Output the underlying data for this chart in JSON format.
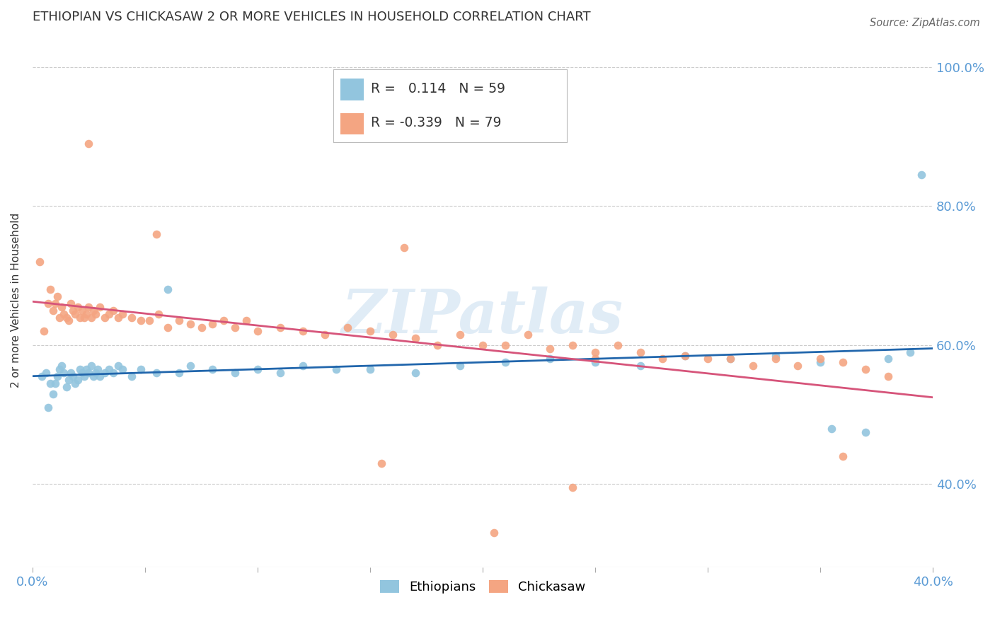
{
  "title": "ETHIOPIAN VS CHICKASAW 2 OR MORE VEHICLES IN HOUSEHOLD CORRELATION CHART",
  "source": "Source: ZipAtlas.com",
  "ylabel": "2 or more Vehicles in Household",
  "watermark": "ZIPatlas",
  "xlim": [
    0.0,
    0.4
  ],
  "ylim": [
    0.28,
    1.05
  ],
  "xticks": [
    0.0,
    0.05,
    0.1,
    0.15,
    0.2,
    0.25,
    0.3,
    0.35,
    0.4
  ],
  "xticklabels_show": {
    "0.0": "0.0%",
    "0.4": "40.0%"
  },
  "yticks": [
    0.4,
    0.6,
    0.8,
    1.0
  ],
  "yticklabels": [
    "40.0%",
    "60.0%",
    "80.0%",
    "100.0%"
  ],
  "blue_color": "#92c5de",
  "blue_line_color": "#2166ac",
  "pink_color": "#f4a582",
  "pink_line_color": "#d6547a",
  "legend_R_blue": "0.114",
  "legend_N_blue": "59",
  "legend_R_pink": "-0.339",
  "legend_N_pink": "79",
  "blue_scatter_x": [
    0.004,
    0.006,
    0.007,
    0.008,
    0.009,
    0.01,
    0.011,
    0.012,
    0.013,
    0.014,
    0.015,
    0.016,
    0.017,
    0.018,
    0.019,
    0.02,
    0.021,
    0.022,
    0.023,
    0.024,
    0.025,
    0.026,
    0.027,
    0.028,
    0.029,
    0.03,
    0.032,
    0.034,
    0.036,
    0.038,
    0.04,
    0.044,
    0.048,
    0.055,
    0.06,
    0.065,
    0.07,
    0.08,
    0.09,
    0.1,
    0.11,
    0.12,
    0.135,
    0.15,
    0.17,
    0.19,
    0.21,
    0.23,
    0.25,
    0.27,
    0.29,
    0.31,
    0.33,
    0.35,
    0.355,
    0.37,
    0.38,
    0.39,
    0.395
  ],
  "blue_scatter_y": [
    0.555,
    0.56,
    0.51,
    0.545,
    0.53,
    0.545,
    0.555,
    0.565,
    0.57,
    0.56,
    0.54,
    0.55,
    0.56,
    0.555,
    0.545,
    0.55,
    0.565,
    0.56,
    0.555,
    0.565,
    0.56,
    0.57,
    0.555,
    0.56,
    0.565,
    0.555,
    0.56,
    0.565,
    0.56,
    0.57,
    0.565,
    0.555,
    0.565,
    0.56,
    0.68,
    0.56,
    0.57,
    0.565,
    0.56,
    0.565,
    0.56,
    0.57,
    0.565,
    0.565,
    0.56,
    0.57,
    0.575,
    0.58,
    0.575,
    0.57,
    0.585,
    0.58,
    0.585,
    0.575,
    0.48,
    0.475,
    0.58,
    0.59,
    0.845
  ],
  "pink_scatter_x": [
    0.003,
    0.005,
    0.007,
    0.008,
    0.009,
    0.01,
    0.011,
    0.012,
    0.013,
    0.014,
    0.015,
    0.016,
    0.017,
    0.018,
    0.019,
    0.02,
    0.021,
    0.022,
    0.023,
    0.024,
    0.025,
    0.026,
    0.027,
    0.028,
    0.03,
    0.032,
    0.034,
    0.036,
    0.038,
    0.04,
    0.044,
    0.048,
    0.052,
    0.056,
    0.06,
    0.065,
    0.07,
    0.075,
    0.08,
    0.085,
    0.09,
    0.095,
    0.1,
    0.11,
    0.12,
    0.13,
    0.14,
    0.15,
    0.16,
    0.17,
    0.18,
    0.19,
    0.2,
    0.21,
    0.22,
    0.23,
    0.24,
    0.25,
    0.26,
    0.27,
    0.28,
    0.29,
    0.3,
    0.31,
    0.32,
    0.33,
    0.34,
    0.35,
    0.36,
    0.37,
    0.38,
    0.025,
    0.055,
    0.165,
    0.205,
    0.25,
    0.36,
    0.155,
    0.24
  ],
  "pink_scatter_y": [
    0.72,
    0.62,
    0.66,
    0.68,
    0.65,
    0.66,
    0.67,
    0.64,
    0.655,
    0.645,
    0.64,
    0.635,
    0.66,
    0.65,
    0.645,
    0.655,
    0.64,
    0.65,
    0.64,
    0.645,
    0.655,
    0.64,
    0.65,
    0.645,
    0.655,
    0.64,
    0.645,
    0.65,
    0.64,
    0.645,
    0.64,
    0.635,
    0.635,
    0.645,
    0.625,
    0.635,
    0.63,
    0.625,
    0.63,
    0.635,
    0.625,
    0.635,
    0.62,
    0.625,
    0.62,
    0.615,
    0.625,
    0.62,
    0.615,
    0.61,
    0.6,
    0.615,
    0.6,
    0.6,
    0.615,
    0.595,
    0.6,
    0.59,
    0.6,
    0.59,
    0.58,
    0.585,
    0.58,
    0.58,
    0.57,
    0.58,
    0.57,
    0.58,
    0.575,
    0.565,
    0.555,
    0.89,
    0.76,
    0.74,
    0.33,
    0.58,
    0.44,
    0.43,
    0.395
  ],
  "background_color": "#ffffff",
  "grid_color": "#cccccc",
  "title_color": "#333333",
  "tick_label_color": "#5b9bd5"
}
